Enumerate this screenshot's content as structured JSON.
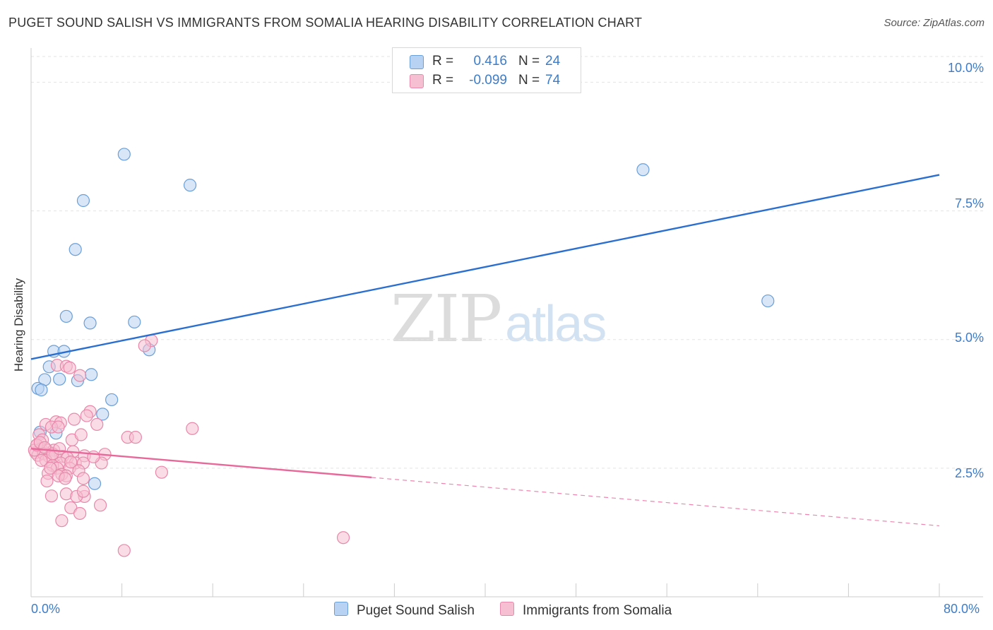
{
  "header": {
    "title": "PUGET SOUND SALISH VS IMMIGRANTS FROM SOMALIA HEARING DISABILITY CORRELATION CHART",
    "source": "Source: ZipAtlas.com"
  },
  "watermark": {
    "zip": "ZIP",
    "atlas": "atlas"
  },
  "legend_top": {
    "rows": [
      {
        "r_label": "R =",
        "r_value": "0.416",
        "n_label": "N =",
        "n_value": "24"
      },
      {
        "r_label": "R =",
        "r_value": "-0.099",
        "n_label": "N =",
        "n_value": "74"
      }
    ]
  },
  "legend_bottom": {
    "items": [
      {
        "label": "Puget Sound Salish"
      },
      {
        "label": "Immigrants from Somalia"
      }
    ]
  },
  "colors": {
    "blue_fill": "#b8d2f3",
    "blue_stroke": "#6a9fd8",
    "blue_line": "#2a6fcf",
    "pink_fill": "#f6bfd2",
    "pink_stroke": "#e888aa",
    "pink_line": "#e8689a",
    "grid": "#e3e3e3",
    "tick_text": "#3d7cc9"
  },
  "chart_data": {
    "type": "scatter",
    "title": "PUGET SOUND SALISH VS IMMIGRANTS FROM SOMALIA HEARING DISABILITY CORRELATION CHART",
    "xlabel": "",
    "ylabel": "Hearing Disability",
    "xlim": [
      0,
      80
    ],
    "ylim": [
      0,
      10.5
    ],
    "x_tick_labels": {
      "min": "0.0%",
      "max": "80.0%"
    },
    "y_ticks": [
      2.5,
      5.0,
      7.5,
      10.0
    ],
    "y_tick_labels": [
      "2.5%",
      "5.0%",
      "7.5%",
      "10.0%"
    ],
    "grid": true,
    "legend_position": "top-center",
    "series": [
      {
        "name": "Puget Sound Salish",
        "R": 0.416,
        "N": 24,
        "points": [
          [
            8.2,
            8.6
          ],
          [
            14.0,
            8.0
          ],
          [
            4.6,
            7.7
          ],
          [
            3.9,
            6.75
          ],
          [
            53.9,
            8.3
          ],
          [
            64.9,
            5.75
          ],
          [
            3.1,
            5.45
          ],
          [
            5.2,
            5.32
          ],
          [
            9.1,
            5.34
          ],
          [
            2.0,
            4.77
          ],
          [
            2.9,
            4.77
          ],
          [
            10.4,
            4.8
          ],
          [
            1.6,
            4.47
          ],
          [
            1.2,
            4.22
          ],
          [
            2.5,
            4.23
          ],
          [
            5.3,
            4.32
          ],
          [
            4.1,
            4.2
          ],
          [
            0.6,
            4.05
          ],
          [
            0.9,
            4.02
          ],
          [
            7.1,
            3.83
          ],
          [
            6.3,
            3.55
          ],
          [
            0.8,
            3.2
          ],
          [
            2.2,
            3.18
          ],
          [
            5.6,
            2.2
          ]
        ],
        "trend": {
          "x": [
            0,
            80
          ],
          "y": [
            4.62,
            8.2
          ]
        }
      },
      {
        "name": "Immigrants from Somalia",
        "R": -0.099,
        "N": 74,
        "points": [
          [
            10.6,
            4.98
          ],
          [
            10.0,
            4.88
          ],
          [
            2.3,
            4.5
          ],
          [
            3.1,
            4.48
          ],
          [
            3.4,
            4.45
          ],
          [
            4.3,
            4.3
          ],
          [
            5.2,
            3.6
          ],
          [
            4.9,
            3.52
          ],
          [
            3.8,
            3.45
          ],
          [
            1.3,
            3.35
          ],
          [
            2.2,
            3.4
          ],
          [
            2.6,
            3.38
          ],
          [
            1.8,
            3.3
          ],
          [
            2.4,
            3.3
          ],
          [
            5.8,
            3.35
          ],
          [
            14.2,
            3.27
          ],
          [
            0.7,
            3.15
          ],
          [
            1.0,
            3.05
          ],
          [
            3.6,
            3.05
          ],
          [
            4.4,
            3.15
          ],
          [
            8.5,
            3.1
          ],
          [
            9.2,
            3.1
          ],
          [
            0.5,
            2.95
          ],
          [
            0.9,
            2.88
          ],
          [
            1.4,
            2.85
          ],
          [
            2.0,
            2.85
          ],
          [
            3.7,
            2.82
          ],
          [
            0.4,
            2.8
          ],
          [
            0.6,
            2.75
          ],
          [
            1.1,
            2.78
          ],
          [
            1.6,
            2.72
          ],
          [
            2.1,
            2.74
          ],
          [
            2.8,
            2.73
          ],
          [
            3.2,
            2.7
          ],
          [
            4.7,
            2.74
          ],
          [
            6.5,
            2.77
          ],
          [
            0.3,
            2.85
          ],
          [
            1.3,
            2.65
          ],
          [
            2.6,
            2.6
          ],
          [
            3.9,
            2.6
          ],
          [
            4.6,
            2.6
          ],
          [
            1.9,
            2.55
          ],
          [
            2.3,
            2.5
          ],
          [
            3.4,
            2.5
          ],
          [
            4.2,
            2.45
          ],
          [
            1.5,
            2.4
          ],
          [
            2.7,
            2.38
          ],
          [
            3.1,
            2.35
          ],
          [
            4.6,
            2.3
          ],
          [
            2.4,
            2.35
          ],
          [
            0.9,
            2.65
          ],
          [
            1.7,
            2.5
          ],
          [
            3.0,
            2.3
          ],
          [
            11.5,
            2.42
          ],
          [
            1.4,
            2.25
          ],
          [
            3.1,
            2.0
          ],
          [
            4.7,
            1.95
          ],
          [
            4.0,
            1.95
          ],
          [
            4.6,
            2.05
          ],
          [
            1.8,
            1.96
          ],
          [
            3.5,
            1.73
          ],
          [
            6.1,
            1.78
          ],
          [
            4.3,
            1.62
          ],
          [
            2.7,
            1.48
          ],
          [
            0.5,
            2.95
          ],
          [
            0.8,
            3.0
          ],
          [
            1.2,
            2.9
          ],
          [
            1.9,
            2.78
          ],
          [
            2.5,
            2.88
          ],
          [
            3.5,
            2.62
          ],
          [
            8.2,
            0.9
          ],
          [
            27.5,
            1.15
          ],
          [
            6.2,
            2.6
          ],
          [
            5.5,
            2.72
          ]
        ],
        "trend": {
          "x": [
            0,
            30
          ],
          "y": [
            2.88,
            2.32
          ]
        },
        "trend_dashed": {
          "x": [
            30,
            80
          ],
          "y": [
            2.32,
            1.38
          ]
        }
      }
    ]
  }
}
